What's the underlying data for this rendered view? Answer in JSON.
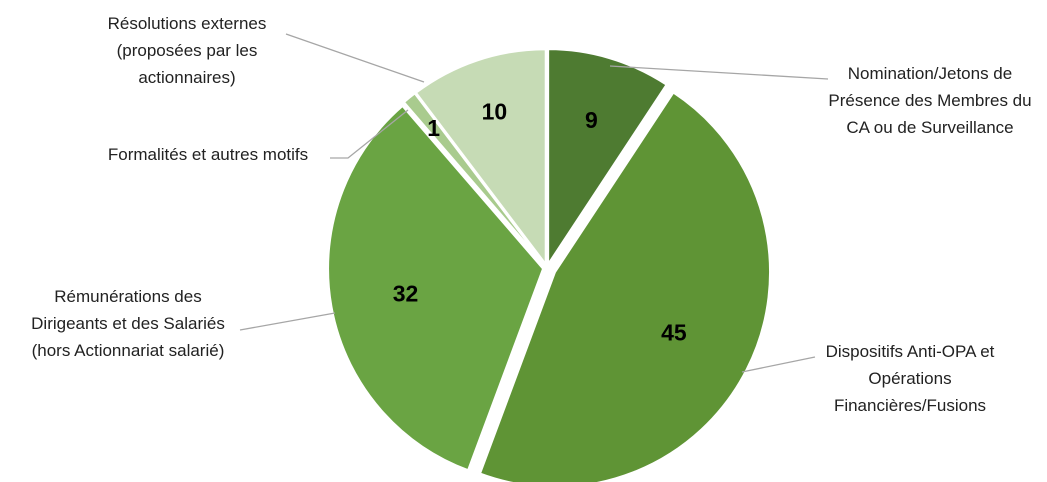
{
  "chart_data": {
    "type": "pie",
    "title": "",
    "legend": "none",
    "slices": [
      {
        "label": "Nomination/Jetons de Présence des Membres du CA ou de Surveillance",
        "label_lines": [
          "Nomination/Jetons de",
          "Présence des Membres du",
          "CA ou de Surveillance"
        ],
        "value": 9,
        "value_label": "9",
        "color": "#4e7b31"
      },
      {
        "label": "Dispositifs Anti-OPA et Opérations Financières/Fusions",
        "label_lines": [
          "Dispositifs Anti-OPA et",
          "Opérations",
          "Financières/Fusions"
        ],
        "value": 45,
        "value_label": "45",
        "color": "#5f9435"
      },
      {
        "label": "Rémunérations des Dirigeants et des Salariés (hors Actionnariat salarié)",
        "label_lines": [
          "Rémunérations des",
          "Dirigeants et des Salariés",
          "(hors Actionnariat salarié)"
        ],
        "value": 32,
        "value_label": "32",
        "color": "#6aa443"
      },
      {
        "label": "Formalités et autres motifs",
        "label_lines": [
          "Formalités et autres motifs"
        ],
        "value": 1,
        "value_label": "1",
        "color": "#a9cb8e"
      },
      {
        "label": "Résolutions externes (proposées par les actionnaires)",
        "label_lines": [
          "Résolutions externes",
          "(proposées par les",
          "actionnaires)"
        ],
        "value": 10,
        "value_label": "10",
        "color": "#c6dbb5"
      }
    ]
  }
}
